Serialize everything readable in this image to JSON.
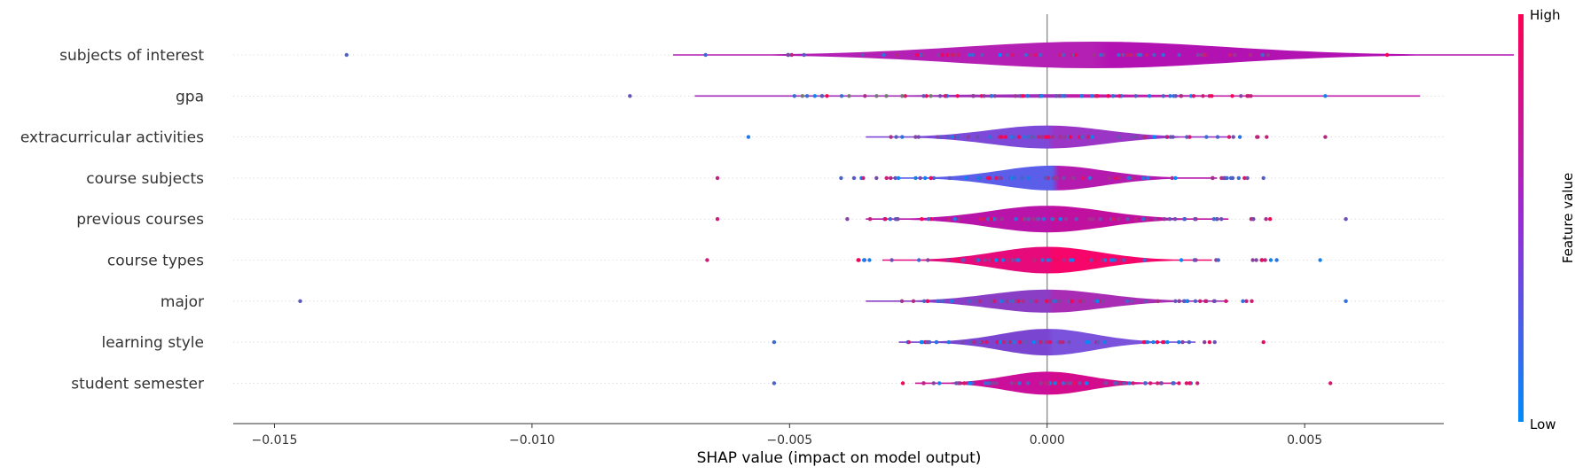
{
  "chart_data": {
    "type": "violin",
    "xlabel": "SHAP value (impact on model output)",
    "xlim": [
      -0.0158,
      0.0077
    ],
    "xticks": [
      -0.015,
      -0.01,
      -0.005,
      0.0,
      0.005
    ],
    "xtick_labels": [
      "−0.015",
      "−0.010",
      "−0.005",
      "0.000",
      "0.005"
    ],
    "colorbar": {
      "label": "Feature value",
      "high_label": "High",
      "low_label": "Low",
      "high_color": "#ff0052",
      "low_color": "#008bfb"
    },
    "features": [
      {
        "name": "subjects of interest",
        "min": -0.0136,
        "max": 0.0066,
        "p_low": -0.0075,
        "p_high": 0.0043,
        "center": 0.0009,
        "width": 0.00255,
        "halfheight": 15,
        "color_left": "#b41fb4",
        "color_right": "#b212b2"
      },
      {
        "name": "gpa",
        "min": -0.0081,
        "max": 0.0054,
        "p_low": -0.0058,
        "p_high": 0.004,
        "center": 0.0002,
        "width": 0.0022,
        "halfheight": 2,
        "color_left": "#a02eb8",
        "color_right": "#c01ca8"
      },
      {
        "name": "extracurricular activities",
        "min": -0.0058,
        "max": 0.0054,
        "p_low": -0.0042,
        "p_high": 0.0047,
        "center": 0.0,
        "width": 0.0011,
        "halfheight": 13,
        "color_left": "#7d49d8",
        "color_right": "#9b35c6"
      },
      {
        "name": "course subjects",
        "min": -0.0064,
        "max": 0.0042,
        "p_low": -0.0045,
        "p_high": 0.004,
        "center": 0.0001,
        "width": 0.001,
        "halfheight": 14,
        "color_left": "#5a5ee8",
        "color_right": "#b41aae"
      },
      {
        "name": "previous courses",
        "min": -0.0064,
        "max": 0.0058,
        "p_low": -0.004,
        "p_high": 0.0045,
        "center": 0.0,
        "width": 0.0011,
        "halfheight": 15,
        "color_left": "#b814aa",
        "color_right": "#c0109f"
      },
      {
        "name": "course types",
        "min": -0.0066,
        "max": 0.0053,
        "p_low": -0.0042,
        "p_high": 0.0048,
        "center": 0.0,
        "width": 0.001,
        "halfheight": 15,
        "color_left": "#e60a7a",
        "color_right": "#f6066a"
      },
      {
        "name": "major",
        "min": -0.0145,
        "max": 0.0058,
        "p_low": -0.0037,
        "p_high": 0.004,
        "center": 0.0,
        "width": 0.0011,
        "halfheight": 13,
        "color_left": "#8a3ec6",
        "color_right": "#a82cb4"
      },
      {
        "name": "learning style",
        "min": -0.0053,
        "max": 0.0042,
        "p_low": -0.0033,
        "p_high": 0.0033,
        "center": 0.0,
        "width": 0.0009,
        "halfheight": 15,
        "color_left": "#7a45d0",
        "color_right": "#7a52dc"
      },
      {
        "name": "student semester",
        "min": -0.0053,
        "max": 0.0055,
        "p_low": -0.0033,
        "p_high": 0.003,
        "center": 0.0,
        "width": 0.0008,
        "halfheight": 13,
        "color_left": "#cc0f9a",
        "color_right": "#d30c8e"
      }
    ]
  }
}
